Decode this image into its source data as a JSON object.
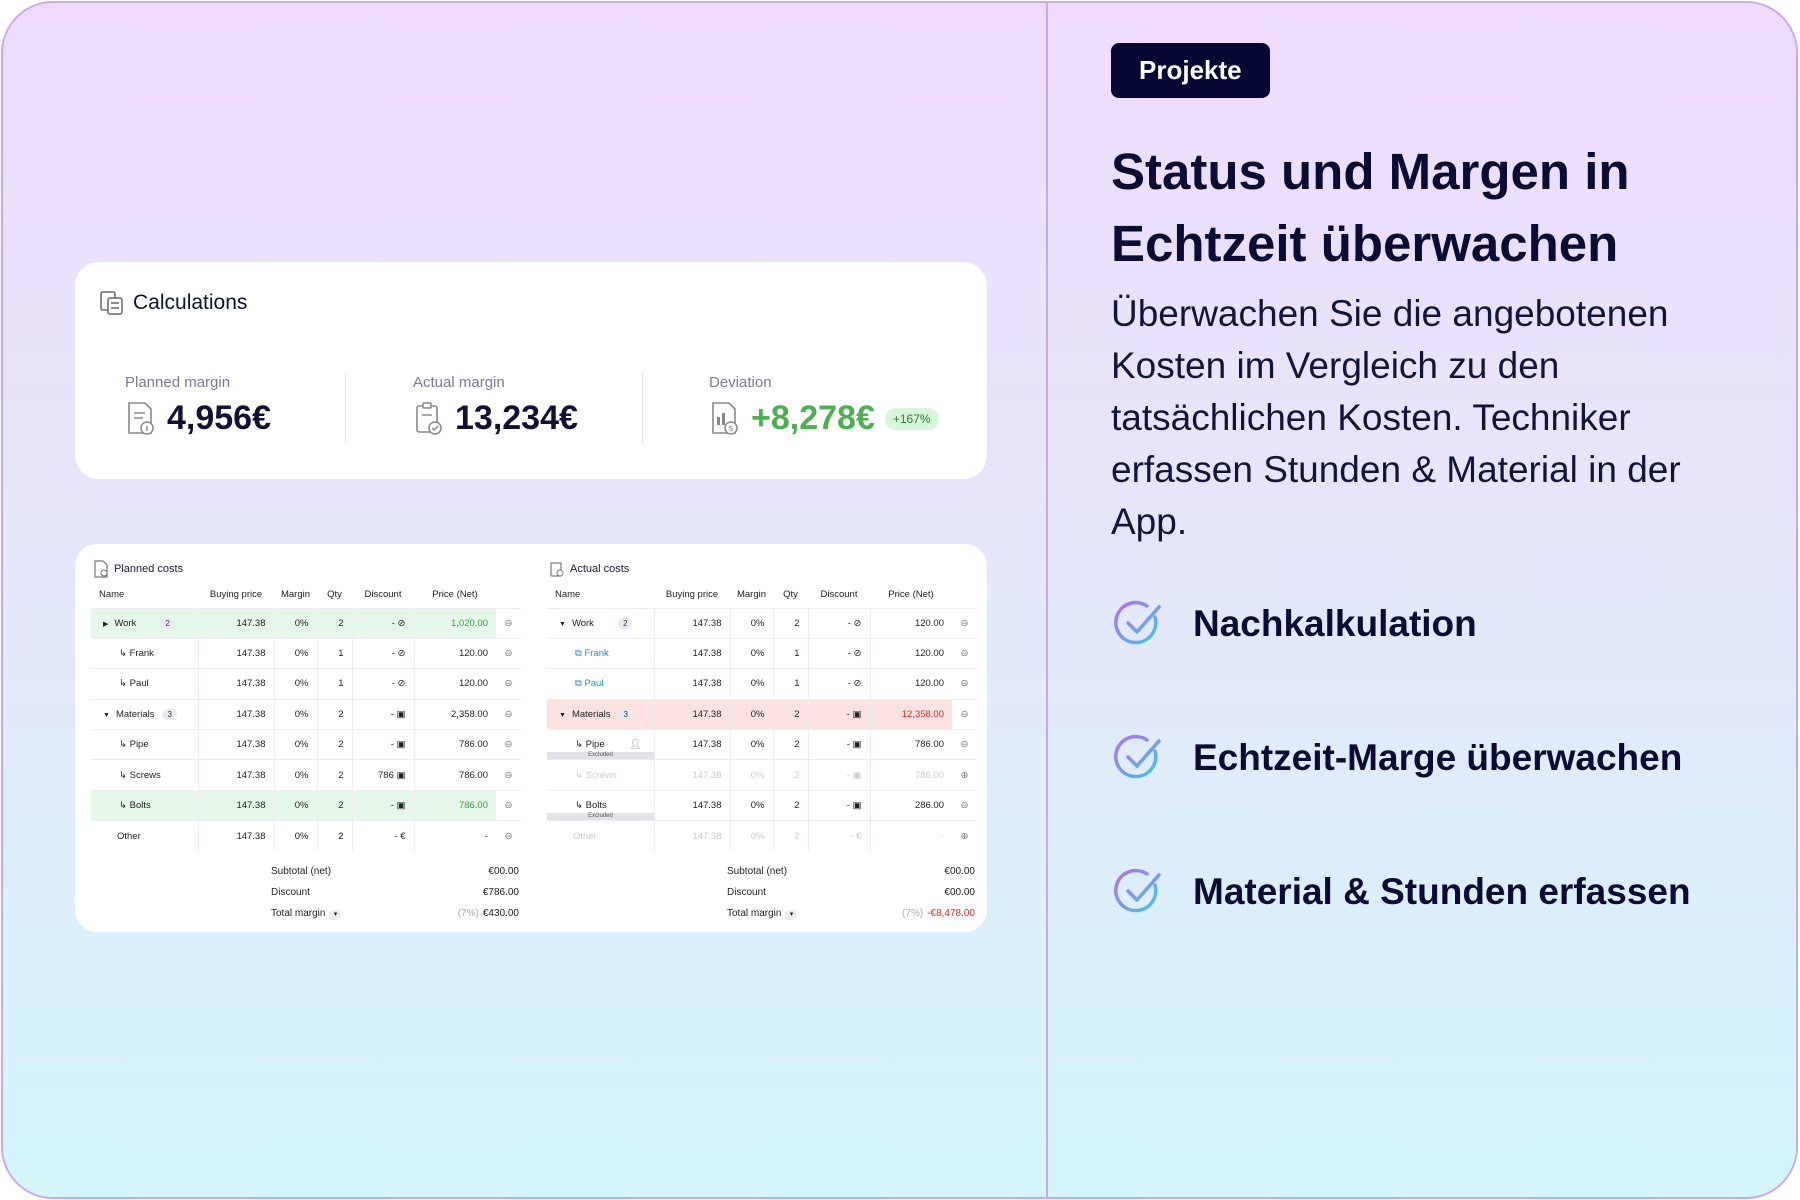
{
  "right": {
    "tag": "Projekte",
    "headline": "Status und Margen in Echtzeit überwachen",
    "description": "Überwachen Sie die angebotenen Kosten im Vergleich zu den tatsächlichen Kosten. Techniker erfassen Stunden & Material in der App.",
    "features": [
      {
        "label": "Nachkalkulation",
        "icon": "check-circle-icon"
      },
      {
        "label": "Echtzeit-Marge überwachen",
        "icon": "check-circle-icon"
      },
      {
        "label": "Material & Stunden erfassen",
        "icon": "check-circle-icon"
      }
    ]
  },
  "calculations": {
    "title": "Calculations",
    "planned": {
      "label": "Planned margin",
      "value": "4,956€"
    },
    "actual": {
      "label": "Actual margin",
      "value": "13,234€"
    },
    "deviation": {
      "label": "Deviation",
      "value": "+8,278€",
      "badge": "+167%"
    }
  },
  "planned_costs": {
    "title": "Planned costs",
    "columns": [
      "Name",
      "Buying price",
      "Margin",
      "Qty",
      "Discount",
      "Price (Net)"
    ],
    "rows": [
      {
        "name": "Work",
        "count": "2",
        "buying": "147.38",
        "margin": "0%",
        "qty": "2",
        "discount": "-",
        "price": "1,020.00"
      },
      {
        "name": "Frank",
        "buying": "147.38",
        "margin": "0%",
        "qty": "1",
        "discount": "-",
        "price": "120.00"
      },
      {
        "name": "Paul",
        "buying": "147.38",
        "margin": "0%",
        "qty": "1",
        "discount": "-",
        "price": "120.00"
      },
      {
        "name": "Materials",
        "count": "3",
        "buying": "147.38",
        "margin": "0%",
        "qty": "2",
        "discount": "-",
        "price": "2,358.00"
      },
      {
        "name": "Pipe",
        "buying": "147.38",
        "margin": "0%",
        "qty": "2",
        "discount": "-",
        "price": "786.00"
      },
      {
        "name": "Screws",
        "buying": "147.38",
        "margin": "0%",
        "qty": "2",
        "discount": "786",
        "price": "786.00"
      },
      {
        "name": "Bolts",
        "buying": "147.38",
        "margin": "0%",
        "qty": "2",
        "discount": "-",
        "price": "786.00"
      },
      {
        "name": "Other",
        "buying": "147.38",
        "margin": "0%",
        "qty": "2",
        "discount": "-",
        "price": "-"
      }
    ],
    "subtotal_label": "Subtotal (net)",
    "subtotal": "€00.00",
    "discount_label": "Discount",
    "discount": "€786.00",
    "total_label": "Total margin",
    "total_pct": "(7%)",
    "total": "€430.00"
  },
  "actual_costs": {
    "title": "Actual costs",
    "columns": [
      "Name",
      "Buying price",
      "Margin",
      "Qty",
      "Discount",
      "Price (Net)"
    ],
    "rows": [
      {
        "name": "Work",
        "count": "2",
        "buying": "147.38",
        "margin": "0%",
        "qty": "2",
        "discount": "-",
        "price": "120.00"
      },
      {
        "name": "Frank",
        "buying": "147.38",
        "margin": "0%",
        "qty": "1",
        "discount": "-",
        "price": "120.00"
      },
      {
        "name": "Paul",
        "buying": "147.38",
        "margin": "0%",
        "qty": "1",
        "discount": "-",
        "price": "120.00"
      },
      {
        "name": "Materials",
        "count": "3",
        "buying": "147.38",
        "margin": "0%",
        "qty": "2",
        "discount": "-",
        "price": "12,358.00"
      },
      {
        "name": "Pipe",
        "buying": "147.38",
        "margin": "0%",
        "qty": "2",
        "discount": "-",
        "price": "786.00"
      },
      {
        "name": "Screws",
        "buying": "147.38",
        "margin": "0%",
        "qty": "2",
        "discount": "-",
        "price": "786.00"
      },
      {
        "name": "Bolts",
        "buying": "147.38",
        "margin": "0%",
        "qty": "2",
        "discount": "-",
        "price": "286.00"
      },
      {
        "name": "Other",
        "buying": "147.38",
        "margin": "0%",
        "qty": "2",
        "discount": "-",
        "price": "-"
      }
    ],
    "excluded_label": "Excluded",
    "subtotal_label": "Subtotal (net)",
    "subtotal": "€00.00",
    "discount_label": "Discount",
    "discount": "€00.00",
    "total_label": "Total margin",
    "total_pct": "(7%)",
    "total": "-€8,478.00"
  }
}
